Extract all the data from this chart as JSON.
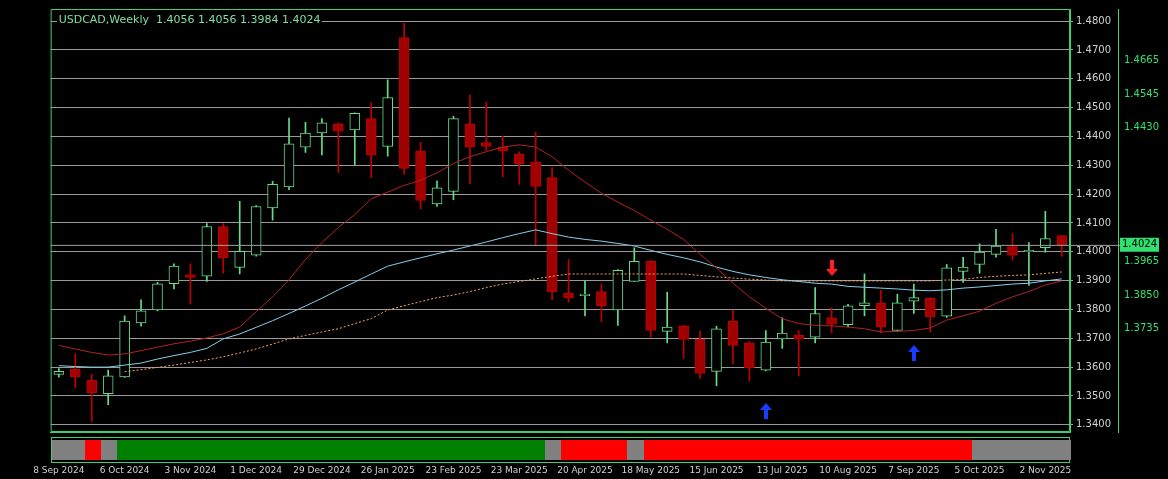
{
  "chart_data": [
    {
      "type": "candlestick",
      "title": "USDCAD,Weekly  1.4056 1.4056 1.3984 1.4024",
      "categories": [
        "8 Sep 2024",
        null,
        null,
        null,
        "6 Oct 2024",
        null,
        null,
        null,
        "3 Nov 2024",
        null,
        null,
        null,
        "1 Dec 2024",
        null,
        null,
        null,
        "29 Dec 2024",
        null,
        null,
        null,
        "26 Jan 2025",
        null,
        null,
        null,
        "23 Feb 2025",
        null,
        null,
        null,
        "23 Mar 2025",
        null,
        null,
        null,
        "20 Apr 2025",
        null,
        null,
        null,
        "18 May 2025",
        null,
        null,
        null,
        "15 Jun 2025",
        null,
        null,
        null,
        "13 Jul 2025",
        null,
        null,
        null,
        "10 Aug 2025",
        null,
        null,
        null,
        "7 Sep 2025",
        null,
        null,
        null,
        "5 Oct 2025",
        null,
        null,
        null,
        "2 Nov 2025",
        null
      ],
      "ohlc": [
        [
          1.3575,
          1.3595,
          1.3565,
          1.3585
        ],
        [
          1.3593,
          1.3646,
          1.3529,
          1.3566
        ],
        [
          1.3554,
          1.3575,
          1.3412,
          1.3511
        ],
        [
          1.3508,
          1.359,
          1.347,
          1.357
        ],
        [
          1.3566,
          1.3778,
          1.3564,
          1.376
        ],
        [
          1.3753,
          1.3833,
          1.3742,
          1.3795
        ],
        [
          1.3798,
          1.3894,
          1.3795,
          1.3889
        ],
        [
          1.3889,
          1.3958,
          1.3871,
          1.395
        ],
        [
          1.392,
          1.3958,
          1.3818,
          1.3911
        ],
        [
          1.3915,
          1.4098,
          1.3897,
          1.4087
        ],
        [
          1.4087,
          1.4098,
          1.3926,
          1.3979
        ],
        [
          1.3946,
          1.4175,
          1.3923,
          1.4002
        ],
        [
          1.3988,
          1.416,
          1.3985,
          1.4157
        ],
        [
          1.4152,
          1.4244,
          1.411,
          1.4234
        ],
        [
          1.4225,
          1.4464,
          1.4215,
          1.4374
        ],
        [
          1.4363,
          1.4449,
          1.4345,
          1.4412
        ],
        [
          1.4412,
          1.4462,
          1.4336,
          1.4447
        ],
        [
          1.4444,
          1.4447,
          1.4275,
          1.4418
        ],
        [
          1.4423,
          1.4482,
          1.4301,
          1.448
        ],
        [
          1.4462,
          1.4517,
          1.4257,
          1.4336
        ],
        [
          1.4365,
          1.4596,
          1.4332,
          1.4535
        ],
        [
          1.4743,
          1.4792,
          1.4269,
          1.4289
        ],
        [
          1.435,
          1.438,
          1.4149,
          1.4178
        ],
        [
          1.4166,
          1.4246,
          1.4157,
          1.4222
        ],
        [
          1.4209,
          1.447,
          1.4181,
          1.4462
        ],
        [
          1.4444,
          1.4544,
          1.4236,
          1.4363
        ],
        [
          1.4379,
          1.4519,
          1.4351,
          1.4365
        ],
        [
          1.4363,
          1.44,
          1.426,
          1.435
        ],
        [
          1.4339,
          1.4347,
          1.4234,
          1.4306
        ],
        [
          1.4312,
          1.4414,
          1.4023,
          1.4227
        ],
        [
          1.4257,
          1.4292,
          1.3833,
          1.3862
        ],
        [
          1.3856,
          1.3973,
          1.3825,
          1.3841
        ],
        [
          1.3848,
          1.3899,
          1.3778,
          1.3853
        ],
        [
          1.3862,
          1.3888,
          1.3757,
          1.3813
        ],
        [
          1.3798,
          1.3938,
          1.3745,
          1.3936
        ],
        [
          1.3897,
          1.4014,
          1.3897,
          1.3967
        ],
        [
          1.3967,
          1.397,
          1.3704,
          1.3727
        ],
        [
          1.3724,
          1.386,
          1.3684,
          1.3739
        ],
        [
          1.3743,
          1.3745,
          1.363,
          1.3696
        ],
        [
          1.3696,
          1.3725,
          1.356,
          1.3578
        ],
        [
          1.3585,
          1.3742,
          1.3535,
          1.3733
        ],
        [
          1.3759,
          1.3798,
          1.3611,
          1.3675
        ],
        [
          1.3684,
          1.3689,
          1.3552,
          1.3597
        ],
        [
          1.3589,
          1.3727,
          1.3587,
          1.3687
        ],
        [
          1.3698,
          1.3771,
          1.3665,
          1.3718
        ],
        [
          1.371,
          1.3727,
          1.357,
          1.3698
        ],
        [
          1.3704,
          1.3876,
          1.3684,
          1.3786
        ],
        [
          1.3771,
          1.3806,
          1.3719,
          1.3749
        ],
        [
          1.3747,
          1.3818,
          1.3739,
          1.3813
        ],
        [
          1.3813,
          1.3923,
          1.3778,
          1.3823
        ],
        [
          1.3821,
          1.3866,
          1.3718,
          1.3739
        ],
        [
          1.3727,
          1.3853,
          1.3725,
          1.3823
        ],
        [
          1.3829,
          1.3888,
          1.3786,
          1.3841
        ],
        [
          1.3839,
          1.3841,
          1.3722,
          1.3774
        ],
        [
          1.3777,
          1.3956,
          1.3772,
          1.3944
        ],
        [
          1.3932,
          1.3981,
          1.3894,
          1.3947
        ],
        [
          1.3956,
          1.4028,
          1.3926,
          1.3999
        ],
        [
          1.3991,
          1.4078,
          1.3981,
          1.402
        ],
        [
          1.4018,
          1.4063,
          1.3971,
          1.3988
        ],
        [
          1.4,
          1.4032,
          1.3883,
          1.4005
        ],
        [
          1.4014,
          1.414,
          1.3999,
          1.4046
        ],
        [
          1.4056,
          1.4056,
          1.3984,
          1.4024
        ]
      ],
      "series": [
        {
          "type": "line",
          "color": "#b22222",
          "values": [
            1.3675,
            1.3663,
            1.3651,
            1.3642,
            1.3646,
            1.3657,
            1.3669,
            1.3681,
            1.369,
            1.3701,
            1.3716,
            1.3739,
            1.3792,
            1.3844,
            1.3903,
            1.3973,
            1.4032,
            1.4084,
            1.4129,
            1.4184,
            1.4207,
            1.423,
            1.4248,
            1.4274,
            1.4306,
            1.433,
            1.4347,
            1.4363,
            1.4371,
            1.4363,
            1.433,
            1.4283,
            1.4242,
            1.4203,
            1.4172,
            1.4143,
            1.411,
            1.4078,
            1.4043,
            1.3991,
            1.3944,
            1.3891,
            1.3844,
            1.3804,
            1.3768,
            1.3751,
            1.3745,
            1.3743,
            1.3739,
            1.3733,
            1.3722,
            1.3724,
            1.3727,
            1.3736,
            1.3763,
            1.3778,
            1.3794,
            1.3821,
            1.3844,
            1.3862,
            1.3885,
            1.3899
          ]
        },
        {
          "type": "line",
          "color": "#87ceeb",
          "values": [
            1.3605,
            1.3602,
            1.36,
            1.36,
            1.3607,
            1.3614,
            1.3628,
            1.364,
            1.3651,
            1.3665,
            1.3698,
            1.3715,
            1.3738,
            1.3761,
            1.3786,
            1.3812,
            1.3839,
            1.3868,
            1.3895,
            1.3923,
            1.395,
            1.3965,
            1.3979,
            1.3993,
            1.4006,
            1.402,
            1.4034,
            1.4049,
            1.4063,
            1.4076,
            1.4063,
            1.4051,
            1.4043,
            1.4037,
            1.4029,
            1.402,
            1.4005,
            1.3991,
            1.3979,
            1.3965,
            1.3947,
            1.3932,
            1.392,
            1.3911,
            1.3903,
            1.3897,
            1.3891,
            1.3888,
            1.388,
            1.3877,
            1.3874,
            1.3871,
            1.3867,
            1.3865,
            1.3868,
            1.3874,
            1.3878,
            1.3883,
            1.3888,
            1.3891,
            1.3899,
            1.3906
          ]
        },
        {
          "type": "line",
          "color": "#f4a460",
          "line_style": "dotted",
          "values": [
            null,
            null,
            null,
            null,
            1.3584,
            1.3591,
            1.3599,
            1.3607,
            1.3616,
            1.3625,
            1.3636,
            1.3649,
            1.3663,
            1.368,
            1.3698,
            1.371,
            1.3722,
            1.3733,
            1.3751,
            1.3768,
            1.3798,
            1.3813,
            1.3827,
            1.3841,
            1.385,
            1.3862,
            1.3876,
            1.3888,
            1.3897,
            1.3906,
            1.3915,
            1.3923,
            1.3923,
            1.3923,
            1.3923,
            1.3923,
            1.3923,
            1.3923,
            1.3923,
            1.3918,
            1.3913,
            1.3909,
            1.3905,
            1.3902,
            1.3899,
            1.3899,
            1.3899,
            1.3899,
            1.3899,
            1.3899,
            1.3899,
            1.3899,
            1.3899,
            1.3899,
            1.3902,
            1.3904,
            1.3911,
            1.3915,
            1.3918,
            1.392,
            1.3925,
            1.393
          ]
        }
      ],
      "ylim": [
        1.3375,
        1.4842
      ],
      "yticks": [
        {
          "value": 1.34,
          "label": "1.3400"
        },
        {
          "value": 1.35,
          "label": "1.3500"
        },
        {
          "value": 1.36,
          "label": "1.3600"
        },
        {
          "value": 1.37,
          "label": "1.3700"
        },
        {
          "value": 1.38,
          "label": "1.3800"
        },
        {
          "value": 1.39,
          "label": "1.3900"
        },
        {
          "value": 1.4,
          "label": "1.4000"
        },
        {
          "value": 1.41,
          "label": "1.4100"
        },
        {
          "value": 1.42,
          "label": "1.4200"
        },
        {
          "value": 1.43,
          "label": "1.4300"
        },
        {
          "value": 1.44,
          "label": "1.4400"
        },
        {
          "value": 1.45,
          "label": "1.4500"
        },
        {
          "value": 1.46,
          "label": "1.4600"
        },
        {
          "value": 1.47,
          "label": "1.4700"
        },
        {
          "value": 1.48,
          "label": "1.4800"
        }
      ],
      "y2lim": [
        1.3375,
        1.4842
      ],
      "y2ticks": [
        {
          "value": 1.3735,
          "label": "1.3735"
        },
        {
          "value": 1.385,
          "label": "1.3850"
        },
        {
          "value": 1.3965,
          "label": "1.3965"
        },
        {
          "value": 1.443,
          "label": "1.4430"
        },
        {
          "value": 1.4545,
          "label": "1.4545"
        },
        {
          "value": 1.4665,
          "label": "1.4665"
        }
      ],
      "ref_lines": [
        {
          "axis": "y",
          "value": 1.4024,
          "label": "1.4024",
          "color": "#a0a0a0"
        }
      ],
      "grid": "y",
      "legend": false,
      "marker": "none"
    }
  ]
}
